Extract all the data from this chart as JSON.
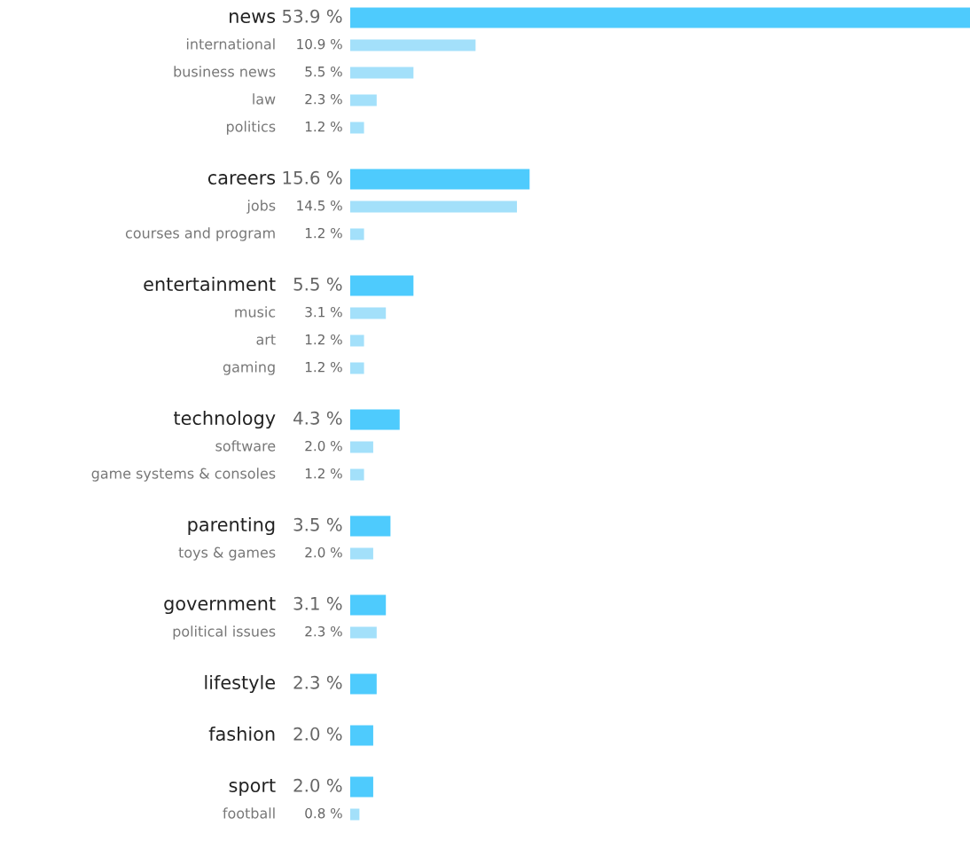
{
  "chart_data": {
    "type": "bar",
    "orientation": "horizontal",
    "categories": [
      "news",
      "international",
      "business news",
      "law",
      "politics",
      "careers",
      "jobs",
      "courses and program",
      "entertainment",
      "music",
      "art",
      "gaming",
      "technology",
      "software",
      "game systems & consoles",
      "parenting",
      "toys & games",
      "government",
      "political issues",
      "lifestyle",
      "fashion",
      "sport",
      "football"
    ],
    "series": [
      {
        "color": "#4ecbfd",
        "values": [
          53.9,
          null,
          null,
          null,
          null,
          15.6,
          null,
          null,
          5.5,
          null,
          null,
          null,
          4.3,
          null,
          null,
          3.5,
          null,
          3.1,
          null,
          2.3,
          2.0,
          2.0,
          null
        ],
        "value_labels": [
          "53.9 %",
          null,
          null,
          null,
          null,
          "15.6 %",
          null,
          null,
          "5.5 %",
          null,
          null,
          null,
          "4.3 %",
          null,
          null,
          "3.5 %",
          null,
          "3.1 %",
          null,
          "2.3 %",
          "2.0 %",
          "2.0 %",
          null
        ]
      },
      {
        "color": "#a3e0fa",
        "values": [
          null,
          10.9,
          5.5,
          2.3,
          1.2,
          null,
          14.5,
          1.2,
          null,
          3.1,
          1.2,
          1.2,
          null,
          2.0,
          1.2,
          null,
          2.0,
          null,
          2.3,
          null,
          null,
          null,
          0.8
        ],
        "value_labels": [
          null,
          "10.9 %",
          "5.5 %",
          "2.3 %",
          "1.2 %",
          null,
          "14.5 %",
          "1.2 %",
          null,
          "3.1 %",
          "1.2 %",
          "1.2 %",
          null,
          "2.0 %",
          "1.2 %",
          null,
          "2.0 %",
          null,
          "2.3 %",
          null,
          null,
          null,
          "0.8 %"
        ]
      }
    ]
  }
}
